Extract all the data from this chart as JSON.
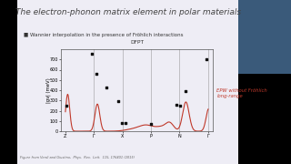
{
  "title": "The electron-phonon matrix element in polar materials",
  "bullet": "Wannier interpolation in the presence of Fröhlich interactions",
  "dfpt_label": "DFPT",
  "epw_label": "EPW without Fröhlich\nlong-range",
  "caption": "Figure from Verdi and Giustino,  Phys.  Rev.  Lett.  115, 176401 (2015)",
  "ylabel": "|gν| (meV)",
  "xtick_labels": [
    "Z",
    "Γ",
    "X",
    "P",
    "N",
    "Γ"
  ],
  "xtick_positions": [
    0,
    1,
    2,
    3,
    4,
    5
  ],
  "vline_positions": [
    1,
    2,
    3,
    4,
    5
  ],
  "ylim": [
    0,
    800
  ],
  "yticks": [
    0,
    100,
    200,
    300,
    400,
    500,
    600,
    700
  ],
  "scatter_x": [
    0.05,
    0.92,
    1.08,
    1.45,
    1.85,
    1.98,
    2.1,
    3.0,
    3.88,
    4.02,
    4.2,
    4.93
  ],
  "scatter_y": [
    250,
    760,
    560,
    430,
    290,
    80,
    80,
    70,
    260,
    250,
    390,
    700
  ],
  "slide_bg": "#000000",
  "content_bg": "#eeedf5",
  "text_color": "#333333",
  "title_color": "#444444",
  "scatter_color": "#111111",
  "line_color": "#c0392b",
  "webcam_bg": "#3a5a7a",
  "title_fontsize": 6.5,
  "tick_fontsize": 3.5,
  "label_fontsize": 3.8,
  "bullet_fontsize": 4.0,
  "caption_fontsize": 2.6,
  "dfpt_fontsize": 4.2,
  "epw_fontsize": 3.8
}
